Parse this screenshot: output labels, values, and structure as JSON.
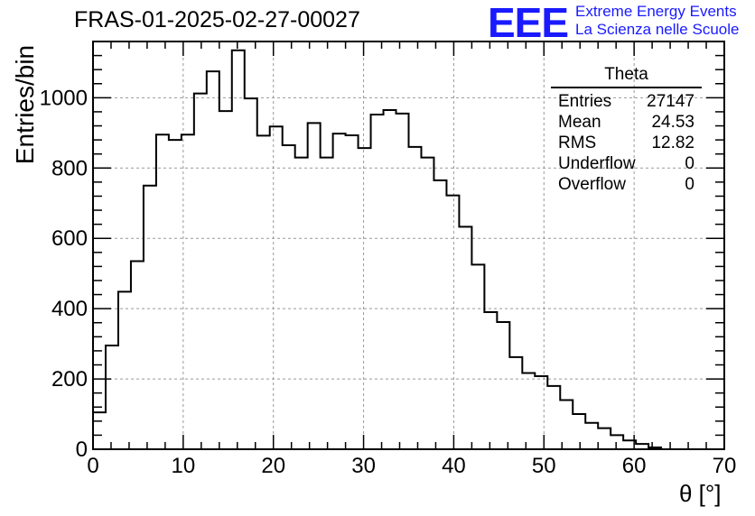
{
  "header": {
    "title": "FRAS-01-2025-02-27-00027",
    "logo_text": "EEE",
    "logo_line1": "Extreme Energy Events",
    "logo_line2": "La Scienza nelle Scuole",
    "logo_color": "#1a1aff"
  },
  "stats": {
    "title": "Theta",
    "rows": [
      {
        "label": "Entries",
        "value": "27147"
      },
      {
        "label": "Mean",
        "value": "24.53"
      },
      {
        "label": "RMS",
        "value": "12.82"
      },
      {
        "label": "Underflow",
        "value": "0"
      },
      {
        "label": "Overflow",
        "value": "0"
      }
    ]
  },
  "chart_data": {
    "type": "histogram",
    "xlabel": "θ [°]",
    "ylabel": "Entries/bin",
    "xlim": [
      0,
      70
    ],
    "ylim": [
      0,
      1160
    ],
    "x_ticks": [
      0,
      10,
      20,
      30,
      40,
      50,
      60,
      70
    ],
    "y_ticks": [
      0,
      200,
      400,
      600,
      800,
      1000
    ],
    "grid": true,
    "line_color": "#000000",
    "bin_edges_start": 0,
    "bin_width": 1.4,
    "values": [
      105,
      295,
      448,
      535,
      750,
      895,
      880,
      895,
      1012,
      1075,
      962,
      1135,
      998,
      892,
      918,
      865,
      830,
      928,
      830,
      898,
      893,
      857,
      952,
      965,
      955,
      860,
      830,
      765,
      722,
      633,
      525,
      390,
      362,
      262,
      217,
      208,
      180,
      140,
      100,
      75,
      60,
      40,
      25,
      15,
      5,
      0,
      0,
      0,
      0,
      0
    ]
  }
}
